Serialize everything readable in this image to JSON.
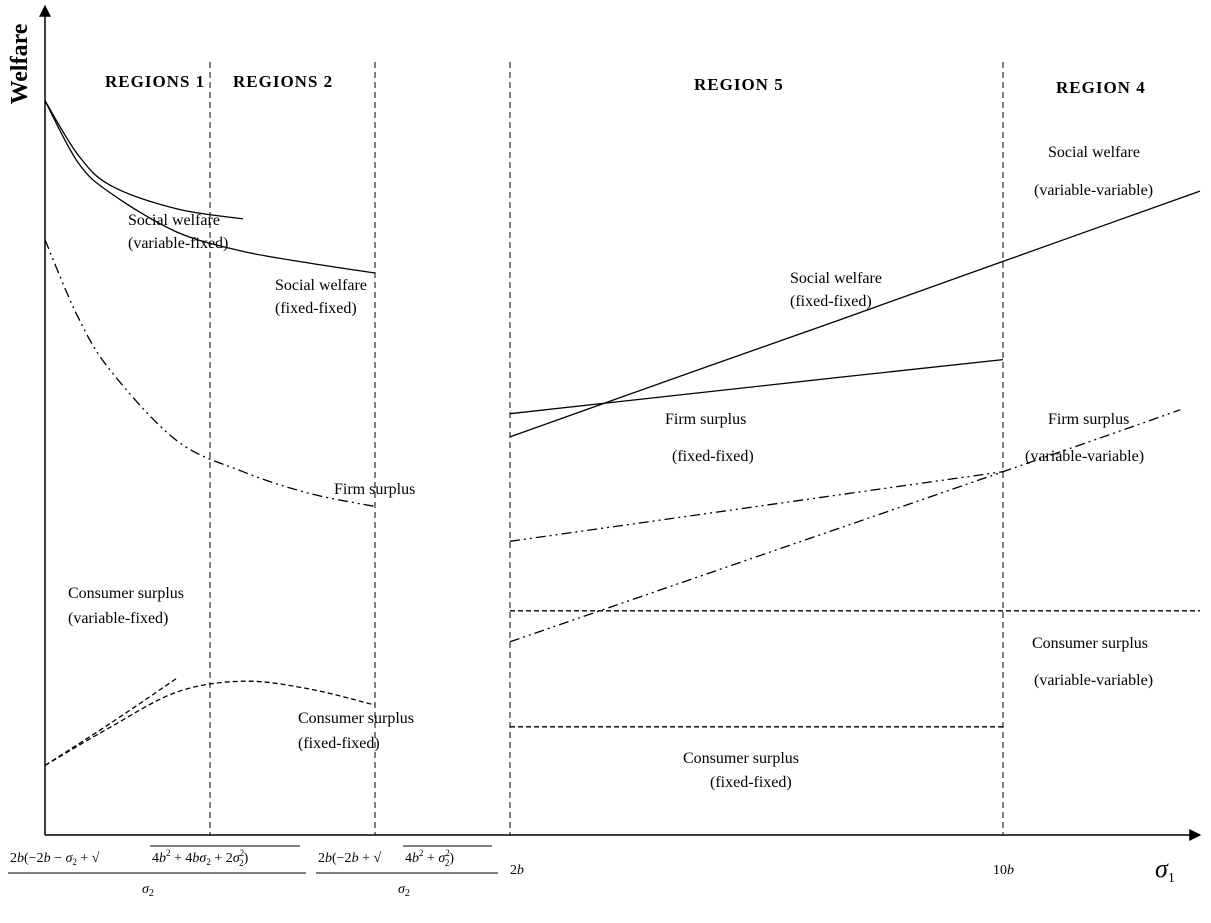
{
  "chart_data": {
    "type": "line",
    "ylabel": "Welfare",
    "xlabel": "σ1",
    "region_labels": [
      "REGIONS 1",
      "REGIONS 2",
      "REGION 5",
      "REGION 4"
    ],
    "x_ticks": [
      {
        "name": "x-tick-boundary-1",
        "text": "2b(−2b − σ2 + √(4b² + 4bσ2 + 2σ2²))/σ2"
      },
      {
        "name": "x-tick-boundary-2",
        "text": "2b(−2b + √(4b² + σ2²))/σ2"
      },
      {
        "name": "x-tick-2b",
        "text": "2b"
      },
      {
        "name": "x-tick-10b",
        "text": "10b"
      }
    ],
    "annotations": {
      "sw_vf_1": "Social welfare",
      "sw_vf_2": "(variable-fixed)",
      "sw_ff_a1": "Social welfare",
      "sw_ff_a2": "(fixed-fixed)",
      "sw_ff_b1": "Social welfare",
      "sw_ff_b2": "(fixed-fixed)",
      "sw_vv_1": "Social welfare",
      "sw_vv_2": "(variable-variable)",
      "fs_left": "Firm surplus",
      "fs_ff_1": "Firm surplus",
      "fs_ff_2": "(fixed-fixed)",
      "fs_vv_1": "Firm surplus",
      "fs_vv_2": "(variable-variable)",
      "cs_vf_1": "Consumer surplus",
      "cs_vf_2": "(variable-fixed)",
      "cs_ff_a1": "Consumer surplus",
      "cs_ff_a2": "(fixed-fixed)",
      "cs_vv_1": "Consumer surplus",
      "cs_vv_2": "(variable-variable)",
      "cs_ff_b1": "Consumer surplus",
      "cs_ff_b2": "(fixed-fixed)"
    },
    "series": [
      {
        "key": "sw-vf",
        "style": "solid",
        "points": [
          [
            0,
            95
          ],
          [
            5,
            88
          ],
          [
            10,
            84
          ],
          [
            20,
            81
          ],
          [
            30,
            79.7
          ]
        ]
      },
      {
        "key": "sw-ff-left",
        "style": "solid",
        "points": [
          [
            0,
            95
          ],
          [
            5,
            87
          ],
          [
            10,
            83
          ],
          [
            20,
            78
          ],
          [
            30,
            75.5
          ],
          [
            40,
            74
          ],
          [
            50,
            72.7
          ]
        ]
      },
      {
        "key": "fs-left",
        "style": "dashdotdot",
        "points": [
          [
            0,
            77
          ],
          [
            5,
            67
          ],
          [
            10,
            60
          ],
          [
            20,
            51
          ],
          [
            30,
            47
          ],
          [
            40,
            44.2
          ],
          [
            50,
            42.5
          ]
        ]
      },
      {
        "key": "cs-vf",
        "style": "dashed",
        "points": [
          [
            0,
            9
          ],
          [
            10,
            14.5
          ],
          [
            20,
            20.3
          ]
        ]
      },
      {
        "key": "cs-ff-left",
        "style": "dashed",
        "points": [
          [
            0,
            9
          ],
          [
            10,
            14
          ],
          [
            20,
            18.5
          ],
          [
            30,
            19.9
          ],
          [
            40,
            18.9
          ],
          [
            50,
            16.8
          ]
        ]
      },
      {
        "key": "sw-ff-right",
        "style": "solid",
        "points": [
          [
            70,
            54.5
          ],
          [
            120,
            59.2
          ],
          [
            145,
            61.5
          ]
        ]
      },
      {
        "key": "sw-vv",
        "style": "solid",
        "points": [
          [
            70,
            51.5
          ],
          [
            100,
            60.6
          ],
          [
            120,
            66.6
          ],
          [
            145,
            74.2
          ],
          [
            175,
            83.3
          ]
        ]
      },
      {
        "key": "fs-ff-right",
        "style": "dashdotdot",
        "points": [
          [
            70,
            38
          ],
          [
            145,
            47
          ]
        ]
      },
      {
        "key": "fs-vv",
        "style": "dashdotdot",
        "points": [
          [
            70,
            25
          ],
          [
            145,
            47
          ],
          [
            172,
            55
          ]
        ]
      },
      {
        "key": "cs-vv",
        "style": "dashed",
        "points": [
          [
            70,
            29
          ],
          [
            175,
            29
          ]
        ]
      },
      {
        "key": "cs-ff-right",
        "style": "dashed",
        "points": [
          [
            70,
            14
          ],
          [
            145,
            14
          ]
        ]
      }
    ],
    "boundaries_x": [
      25,
      50,
      70,
      145
    ],
    "xlim": [
      0,
      175
    ],
    "ylim": [
      0,
      100
    ]
  }
}
